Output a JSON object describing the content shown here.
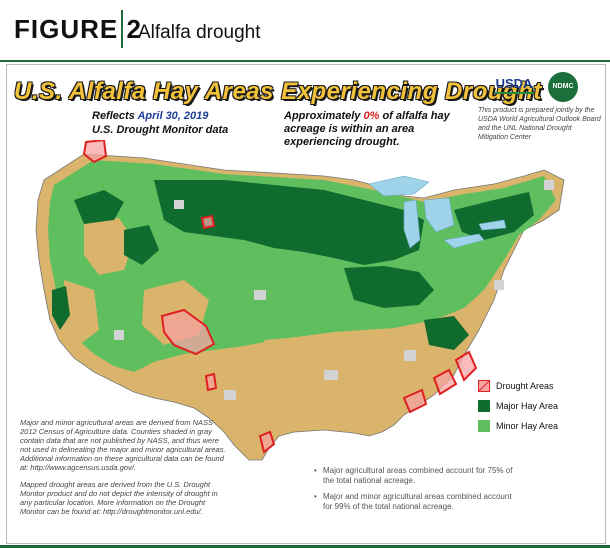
{
  "figure": {
    "label": "FIGURE 2",
    "title": "Alfalfa drought"
  },
  "map": {
    "title": "U.S. Alfalfa Hay Areas Experiencing Drought",
    "reflects_prefix": "Reflects",
    "reflects_date": "April 30, 2019",
    "source_line": "U.S. Drought Monitor data",
    "approx_prefix": "Approximately",
    "approx_pct": "0%",
    "approx_suffix": "of alfalfa hay acreage is within an area experiencing drought.",
    "logos": {
      "usda": "USDA",
      "ndmc": "NDMC"
    },
    "credit": "This product is prepared jointly by the USDA World Agricultural Outlook Board and the UNL National Drought Mitigation Center",
    "legend": [
      {
        "label": "Drought Areas",
        "color": "#f5a3a3"
      },
      {
        "label": "Major Hay Area",
        "color": "#0f6b2e"
      },
      {
        "label": "Minor Hay Area",
        "color": "#5fbf5f"
      }
    ],
    "notes": [
      "Major and minor agricultural areas are derived from NASS 2012 Census of Agriculture data. Counties shaded in gray contain data that are not published by NASS, and thus were not used in delineating the major and minor agricultural areas. Additional information on these agricultural data can be found at: http://www.agcensus.usda.gov/.",
      "Mapped drought areas are derived from the U.S. Drought Monitor product and do not depict the intensity of drought in any particular location. More information on the Drought Monitor can be found at: http://droughtmonitor.unl.edu/."
    ],
    "bullets": [
      "Major agricultural areas combined account for 75% of the total national acreage.",
      "Major and minor agricultural areas combined account for 99% of the total national acreage."
    ],
    "colors": {
      "tan": "#d9b46a",
      "gray": "#d3d3d3",
      "major": "#0f6b2e",
      "minor": "#5fbf5f",
      "lakes": "#9fd3ea",
      "drought_outline": "#e02020"
    }
  }
}
